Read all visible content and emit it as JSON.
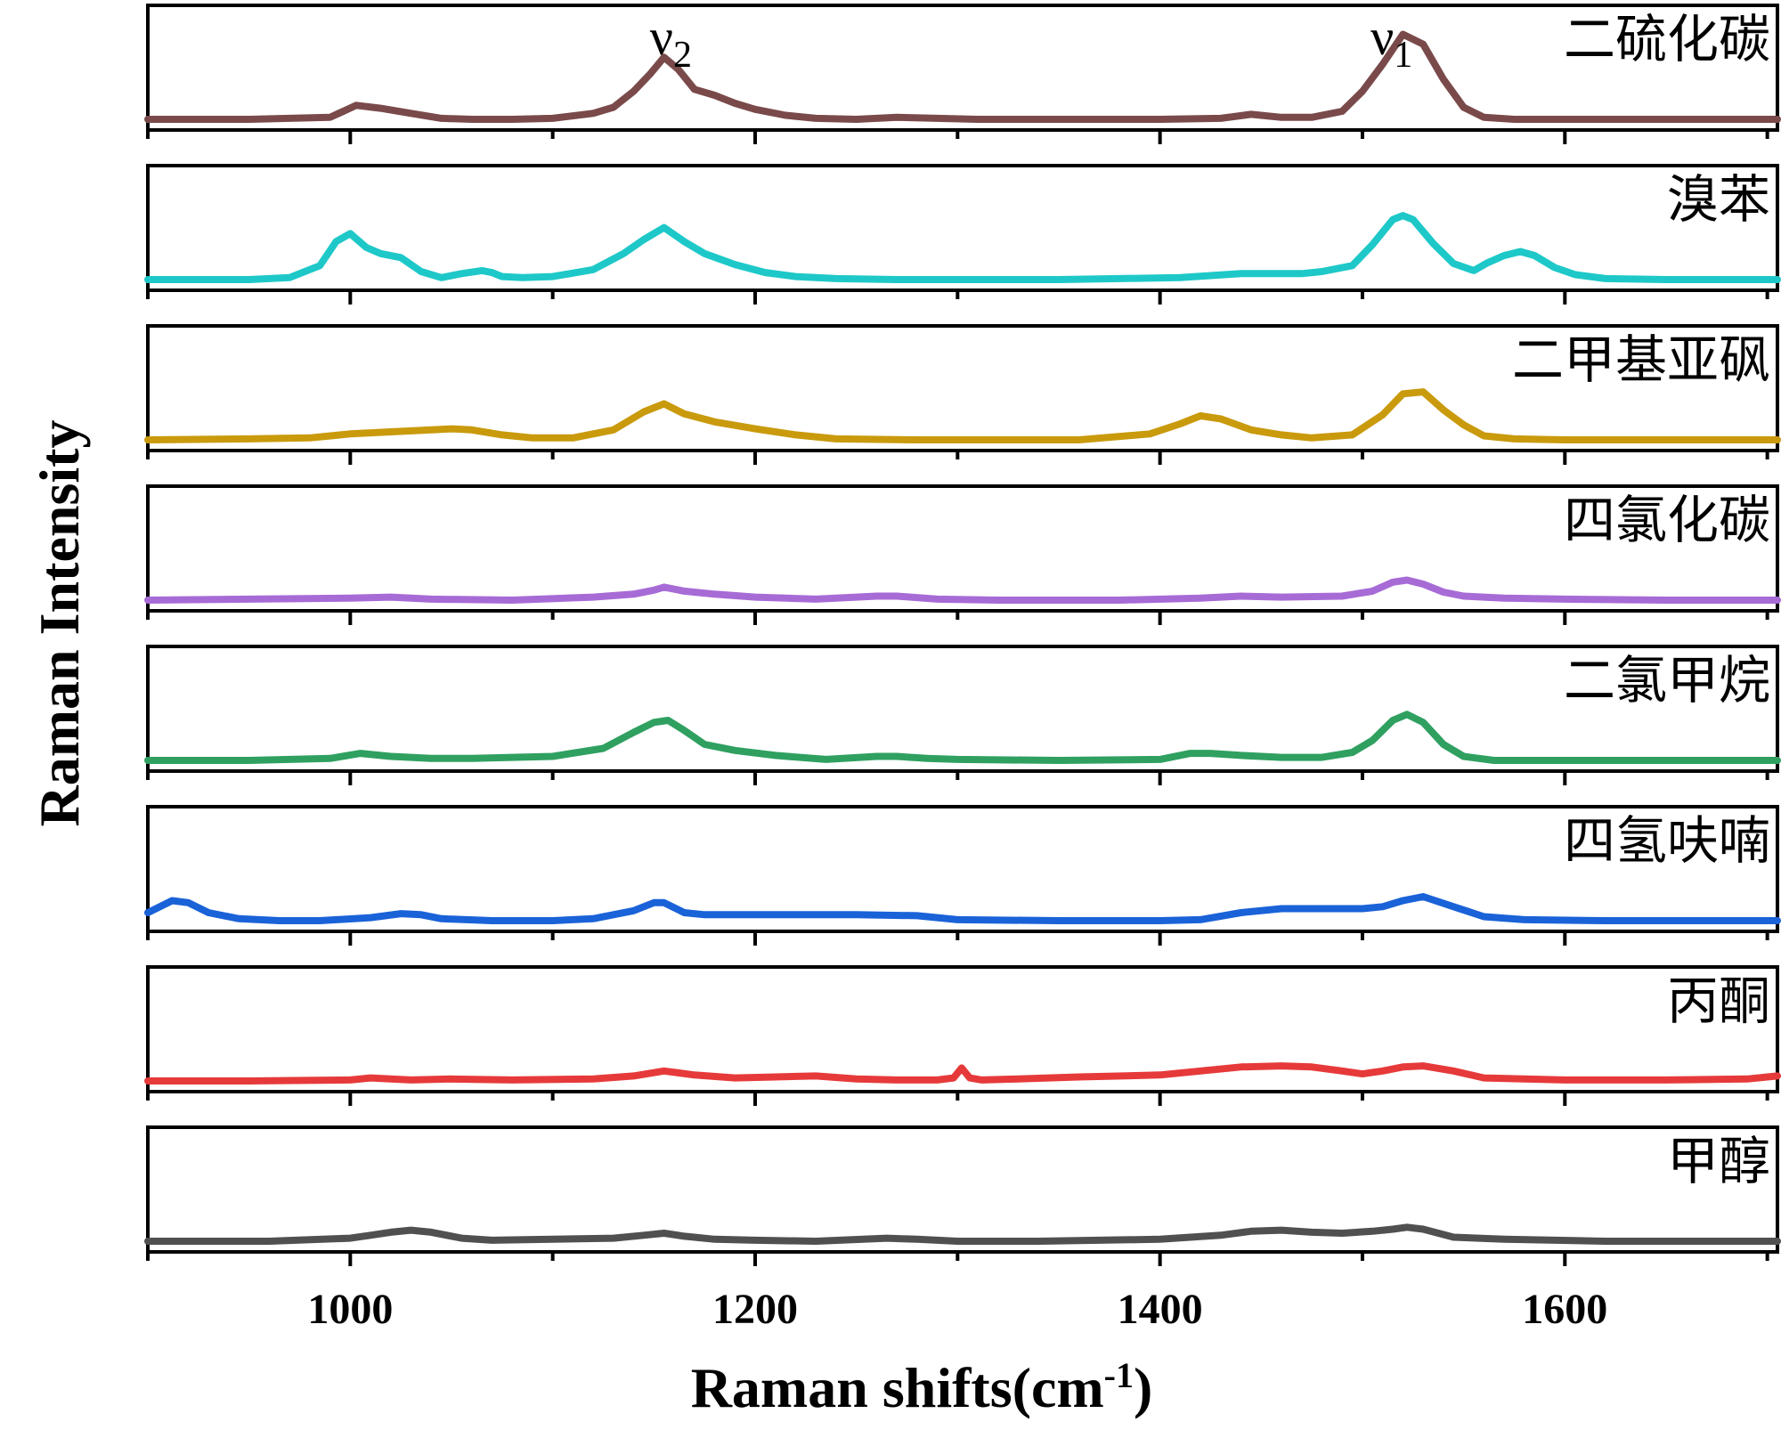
{
  "chart_data": {
    "type": "line",
    "layout": "stacked-panels",
    "xlabel": "Raman shifts(cm",
    "xlabel_superscript": "-1",
    "xlabel_suffix": ")",
    "ylabel": "Raman Intensity",
    "xlim": [
      900,
      1705
    ],
    "ylim": [
      0,
      1.05
    ],
    "x_ticks": [
      1000,
      1200,
      1400,
      1600
    ],
    "x_minor_ticks": [
      900,
      1100,
      1300,
      1500,
      1700
    ],
    "x_tick_labels": [
      "1000",
      "1200",
      "1400",
      "1600"
    ],
    "grid": false,
    "legend": "none",
    "annotations": [
      {
        "base": "ν",
        "sub": "2",
        "x": 1148,
        "panel": 0
      },
      {
        "base": "ν",
        "sub": "1",
        "x": 1504,
        "panel": 0
      }
    ],
    "series": [
      {
        "name": "二硫化碳",
        "color": "#7A4A4A",
        "x": [
          900,
          950,
          990,
          1003,
          1015,
          1030,
          1045,
          1060,
          1080,
          1100,
          1120,
          1130,
          1140,
          1148,
          1155,
          1162,
          1170,
          1180,
          1190,
          1200,
          1215,
          1230,
          1250,
          1270,
          1290,
          1310,
          1340,
          1370,
          1400,
          1430,
          1445,
          1460,
          1475,
          1490,
          1500,
          1510,
          1520,
          1530,
          1540,
          1550,
          1560,
          1575,
          1600,
          1650,
          1705
        ],
        "y": [
          0.0,
          0.0,
          0.02,
          0.14,
          0.11,
          0.06,
          0.01,
          0.0,
          0.0,
          0.01,
          0.06,
          0.12,
          0.28,
          0.45,
          0.62,
          0.5,
          0.3,
          0.24,
          0.16,
          0.1,
          0.04,
          0.01,
          0.0,
          0.02,
          0.01,
          0.0,
          0.0,
          0.0,
          0.0,
          0.01,
          0.05,
          0.02,
          0.02,
          0.08,
          0.28,
          0.55,
          0.85,
          0.75,
          0.4,
          0.12,
          0.02,
          0.0,
          0.0,
          0.0,
          0.0
        ]
      },
      {
        "name": "溴苯",
        "color": "#1EC8C8",
        "x": [
          900,
          950,
          970,
          985,
          993,
          1000,
          1008,
          1015,
          1025,
          1035,
          1045,
          1055,
          1065,
          1070,
          1075,
          1085,
          1100,
          1120,
          1135,
          1145,
          1155,
          1165,
          1175,
          1190,
          1205,
          1220,
          1240,
          1270,
          1300,
          1350,
          1380,
          1410,
          1440,
          1460,
          1470,
          1480,
          1495,
          1505,
          1515,
          1520,
          1525,
          1535,
          1545,
          1555,
          1562,
          1570,
          1578,
          1585,
          1595,
          1605,
          1620,
          1650,
          1705
        ],
        "y": [
          0.0,
          0.0,
          0.02,
          0.14,
          0.38,
          0.46,
          0.32,
          0.26,
          0.22,
          0.08,
          0.02,
          0.06,
          0.09,
          0.07,
          0.03,
          0.02,
          0.03,
          0.1,
          0.26,
          0.4,
          0.52,
          0.38,
          0.26,
          0.15,
          0.07,
          0.03,
          0.01,
          0.0,
          0.0,
          0.0,
          0.01,
          0.02,
          0.06,
          0.06,
          0.06,
          0.08,
          0.14,
          0.35,
          0.6,
          0.64,
          0.6,
          0.36,
          0.16,
          0.09,
          0.17,
          0.24,
          0.28,
          0.24,
          0.12,
          0.05,
          0.01,
          0.0,
          0.0
        ]
      },
      {
        "name": "二甲基亚砜",
        "color": "#C99A0C",
        "x": [
          900,
          950,
          980,
          1000,
          1020,
          1040,
          1050,
          1060,
          1075,
          1090,
          1110,
          1130,
          1145,
          1155,
          1165,
          1180,
          1200,
          1220,
          1240,
          1280,
          1320,
          1360,
          1395,
          1410,
          1420,
          1430,
          1445,
          1460,
          1475,
          1495,
          1510,
          1520,
          1530,
          1540,
          1550,
          1560,
          1575,
          1600,
          1650,
          1705
        ],
        "y": [
          0.0,
          0.01,
          0.02,
          0.06,
          0.08,
          0.1,
          0.11,
          0.1,
          0.05,
          0.02,
          0.02,
          0.1,
          0.28,
          0.36,
          0.26,
          0.18,
          0.11,
          0.05,
          0.01,
          0.0,
          0.0,
          0.0,
          0.06,
          0.16,
          0.24,
          0.21,
          0.1,
          0.05,
          0.02,
          0.05,
          0.25,
          0.46,
          0.48,
          0.3,
          0.15,
          0.04,
          0.01,
          0.0,
          0.0,
          0.0
        ]
      },
      {
        "name": "四氯化碳",
        "color": "#A76BD6",
        "x": [
          900,
          950,
          1000,
          1020,
          1040,
          1080,
          1120,
          1140,
          1150,
          1155,
          1165,
          1180,
          1200,
          1230,
          1260,
          1270,
          1290,
          1320,
          1380,
          1420,
          1440,
          1460,
          1490,
          1505,
          1515,
          1522,
          1530,
          1540,
          1550,
          1570,
          1600,
          1650,
          1705
        ],
        "y": [
          0.0,
          0.01,
          0.02,
          0.03,
          0.01,
          0.0,
          0.03,
          0.06,
          0.1,
          0.13,
          0.09,
          0.06,
          0.03,
          0.01,
          0.04,
          0.04,
          0.01,
          0.0,
          0.0,
          0.02,
          0.04,
          0.03,
          0.04,
          0.09,
          0.18,
          0.2,
          0.16,
          0.08,
          0.04,
          0.02,
          0.01,
          0.0,
          0.0
        ]
      },
      {
        "name": "二氯甲烷",
        "color": "#2FA060",
        "x": [
          900,
          950,
          990,
          1005,
          1020,
          1040,
          1060,
          1080,
          1100,
          1125,
          1140,
          1150,
          1157,
          1165,
          1175,
          1190,
          1210,
          1235,
          1260,
          1270,
          1285,
          1300,
          1350,
          1400,
          1415,
          1425,
          1440,
          1460,
          1480,
          1495,
          1505,
          1515,
          1522,
          1530,
          1540,
          1550,
          1565,
          1600,
          1650,
          1705
        ],
        "y": [
          0.0,
          0.0,
          0.02,
          0.07,
          0.04,
          0.02,
          0.02,
          0.03,
          0.04,
          0.12,
          0.28,
          0.38,
          0.4,
          0.3,
          0.16,
          0.1,
          0.05,
          0.01,
          0.04,
          0.04,
          0.02,
          0.01,
          0.0,
          0.01,
          0.07,
          0.07,
          0.05,
          0.03,
          0.03,
          0.08,
          0.2,
          0.4,
          0.46,
          0.38,
          0.16,
          0.04,
          0.0,
          0.0,
          0.0,
          0.0
        ]
      },
      {
        "name": "四氢呋喃",
        "color": "#1A62D8",
        "x": [
          900,
          912,
          920,
          930,
          945,
          965,
          985,
          1010,
          1025,
          1035,
          1045,
          1070,
          1100,
          1120,
          1140,
          1150,
          1155,
          1165,
          1175,
          1200,
          1250,
          1280,
          1300,
          1350,
          1400,
          1420,
          1440,
          1460,
          1480,
          1500,
          1510,
          1520,
          1530,
          1545,
          1560,
          1580,
          1620,
          1705
        ],
        "y": [
          0.08,
          0.2,
          0.18,
          0.08,
          0.02,
          0.0,
          0.0,
          0.03,
          0.07,
          0.06,
          0.02,
          0.0,
          0.0,
          0.02,
          0.1,
          0.18,
          0.18,
          0.08,
          0.06,
          0.06,
          0.06,
          0.05,
          0.01,
          0.0,
          0.0,
          0.01,
          0.08,
          0.12,
          0.12,
          0.12,
          0.14,
          0.2,
          0.24,
          0.14,
          0.04,
          0.01,
          0.0,
          0.0
        ]
      },
      {
        "name": "丙酮",
        "color": "#E63A3A",
        "x": [
          900,
          950,
          1000,
          1010,
          1030,
          1050,
          1080,
          1120,
          1140,
          1155,
          1170,
          1190,
          1210,
          1230,
          1250,
          1270,
          1290,
          1298,
          1302,
          1306,
          1312,
          1330,
          1360,
          1400,
          1420,
          1440,
          1460,
          1475,
          1490,
          1500,
          1510,
          1520,
          1530,
          1545,
          1560,
          1600,
          1650,
          1690,
          1705
        ],
        "y": [
          0.0,
          0.0,
          0.01,
          0.03,
          0.01,
          0.02,
          0.01,
          0.02,
          0.05,
          0.1,
          0.06,
          0.03,
          0.04,
          0.05,
          0.02,
          0.01,
          0.01,
          0.03,
          0.13,
          0.03,
          0.01,
          0.02,
          0.04,
          0.06,
          0.1,
          0.14,
          0.15,
          0.14,
          0.1,
          0.07,
          0.1,
          0.14,
          0.15,
          0.1,
          0.03,
          0.01,
          0.01,
          0.02,
          0.05
        ]
      },
      {
        "name": "甲醇",
        "color": "#505050",
        "x": [
          900,
          960,
          1000,
          1010,
          1020,
          1030,
          1040,
          1055,
          1070,
          1100,
          1130,
          1145,
          1155,
          1165,
          1180,
          1200,
          1230,
          1265,
          1280,
          1300,
          1340,
          1400,
          1430,
          1445,
          1460,
          1475,
          1490,
          1505,
          1515,
          1522,
          1530,
          1545,
          1570,
          1620,
          1705
        ],
        "y": [
          0.0,
          0.0,
          0.03,
          0.06,
          0.09,
          0.11,
          0.09,
          0.03,
          0.01,
          0.02,
          0.03,
          0.06,
          0.08,
          0.05,
          0.02,
          0.01,
          0.0,
          0.03,
          0.02,
          0.0,
          0.0,
          0.02,
          0.06,
          0.1,
          0.11,
          0.09,
          0.08,
          0.1,
          0.12,
          0.14,
          0.12,
          0.04,
          0.02,
          0.0,
          0.0
        ]
      }
    ]
  }
}
